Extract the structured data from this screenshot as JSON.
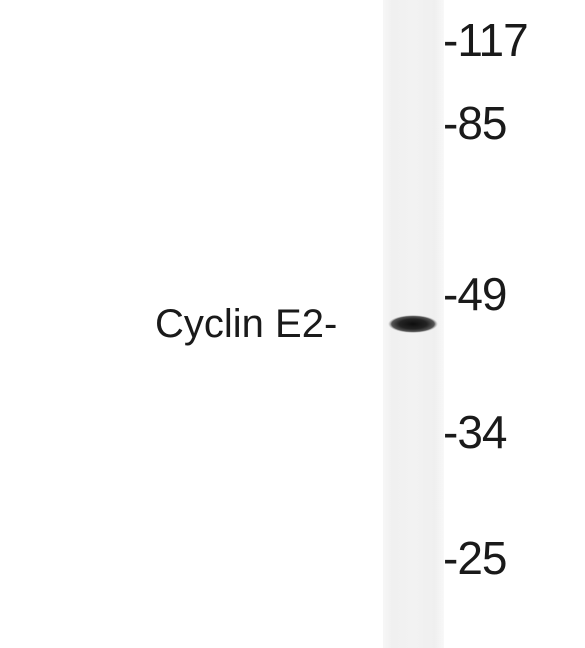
{
  "band": {
    "label": "Cyclin E2-"
  },
  "markers": [
    {
      "label": "-117"
    },
    {
      "label": "-85"
    },
    {
      "label": "-49"
    },
    {
      "label": "-34"
    },
    {
      "label": "-25"
    }
  ],
  "colors": {
    "background": "#ffffff",
    "lane": "#f3f3f3",
    "band": "#1c1c1c",
    "text": "#1a1a1a"
  }
}
